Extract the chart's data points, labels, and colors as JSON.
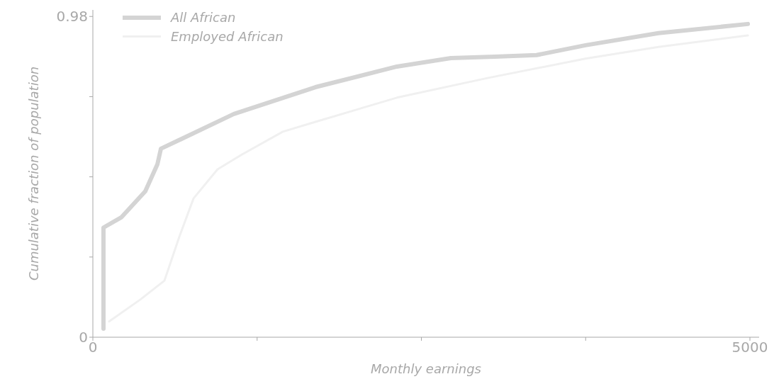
{
  "chart_data": {
    "type": "line",
    "xlabel": "Monthly earnings",
    "ylabel": "Cumulative fraction of population",
    "xlim": [
      0,
      5070
    ],
    "xticks": [
      0,
      {
        "value": 1250,
        "label": null
      },
      {
        "value": 2500,
        "label": null
      },
      {
        "value": 3750,
        "label": null
      },
      5000
    ],
    "ylim": [
      0,
      1
    ],
    "yticks": [
      0,
      {
        "value": 0.245,
        "label": null
      },
      {
        "value": 0.49,
        "label": null
      },
      {
        "value": 0.735,
        "label": null
      },
      0.98
    ],
    "legend": "top left",
    "marker": "none",
    "line_style": "solid",
    "series": [
      {
        "name": "All African",
        "color": "#d4d4d4",
        "x": [
          81,
          81,
          216,
          399,
          491,
          518,
          1073,
          1694,
          2314,
          2724,
          3058,
          3376,
          3749,
          4304,
          4984
        ],
        "values": [
          0.026,
          0.335,
          0.366,
          0.446,
          0.528,
          0.576,
          0.682,
          0.764,
          0.827,
          0.853,
          0.857,
          0.862,
          0.892,
          0.929,
          0.957
        ]
      },
      {
        "name": "Employed African",
        "color": "#f0f0f0",
        "x": [
          124,
          361,
          545,
          658,
          766,
          949,
          1133,
          1446,
          1694,
          2314,
          3004,
          3749,
          4304,
          4984
        ],
        "values": [
          0.048,
          0.115,
          0.173,
          0.307,
          0.424,
          0.513,
          0.558,
          0.628,
          0.658,
          0.732,
          0.792,
          0.851,
          0.887,
          0.922
        ]
      }
    ]
  }
}
